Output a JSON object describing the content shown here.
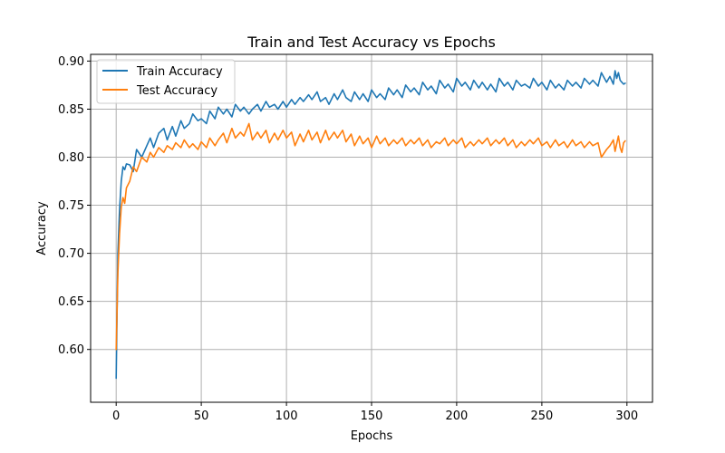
{
  "chart_data": {
    "type": "line",
    "title": "Train and Test Accuracy vs Epochs",
    "xlabel": "Epochs",
    "ylabel": "Accuracy",
    "xlim": [
      -15,
      315
    ],
    "ylim": [
      0.545,
      0.907
    ],
    "xticks": [
      0,
      50,
      100,
      150,
      200,
      250,
      300
    ],
    "yticks": [
      0.6,
      0.65,
      0.7,
      0.75,
      0.8,
      0.85,
      0.9
    ],
    "ytick_labels": [
      "0.60",
      "0.65",
      "0.70",
      "0.75",
      "0.80",
      "0.85",
      "0.90"
    ],
    "grid": true,
    "legend_position": "top-left",
    "series": [
      {
        "name": "Train Accuracy",
        "color": "#1f77b4",
        "x": [
          0,
          1,
          2,
          3,
          4,
          5,
          6,
          8,
          10,
          12,
          15,
          18,
          20,
          22,
          25,
          28,
          30,
          33,
          35,
          38,
          40,
          43,
          45,
          48,
          50,
          53,
          55,
          58,
          60,
          63,
          65,
          68,
          70,
          73,
          75,
          78,
          80,
          83,
          85,
          88,
          90,
          93,
          95,
          98,
          100,
          103,
          105,
          108,
          110,
          113,
          115,
          118,
          120,
          123,
          125,
          128,
          130,
          133,
          135,
          138,
          140,
          143,
          145,
          148,
          150,
          153,
          155,
          158,
          160,
          163,
          165,
          168,
          170,
          173,
          175,
          178,
          180,
          183,
          185,
          188,
          190,
          193,
          195,
          198,
          200,
          203,
          205,
          208,
          210,
          213,
          215,
          218,
          220,
          223,
          225,
          228,
          230,
          233,
          235,
          238,
          240,
          243,
          245,
          248,
          250,
          253,
          255,
          258,
          260,
          263,
          265,
          268,
          270,
          273,
          275,
          278,
          280,
          283,
          285,
          288,
          290,
          292,
          293,
          294,
          295,
          296,
          297,
          298,
          299
        ],
        "values": [
          0.57,
          0.7,
          0.745,
          0.775,
          0.79,
          0.787,
          0.793,
          0.792,
          0.785,
          0.808,
          0.8,
          0.812,
          0.82,
          0.81,
          0.825,
          0.83,
          0.818,
          0.832,
          0.822,
          0.838,
          0.83,
          0.835,
          0.845,
          0.838,
          0.84,
          0.835,
          0.848,
          0.84,
          0.852,
          0.845,
          0.85,
          0.842,
          0.855,
          0.848,
          0.852,
          0.845,
          0.85,
          0.855,
          0.848,
          0.858,
          0.852,
          0.855,
          0.85,
          0.858,
          0.852,
          0.86,
          0.855,
          0.862,
          0.858,
          0.865,
          0.86,
          0.868,
          0.858,
          0.862,
          0.855,
          0.866,
          0.86,
          0.87,
          0.862,
          0.858,
          0.868,
          0.86,
          0.866,
          0.858,
          0.87,
          0.862,
          0.866,
          0.86,
          0.872,
          0.865,
          0.87,
          0.862,
          0.875,
          0.868,
          0.872,
          0.865,
          0.878,
          0.87,
          0.874,
          0.866,
          0.88,
          0.872,
          0.876,
          0.868,
          0.882,
          0.874,
          0.878,
          0.87,
          0.88,
          0.872,
          0.878,
          0.87,
          0.876,
          0.868,
          0.882,
          0.874,
          0.878,
          0.87,
          0.88,
          0.874,
          0.876,
          0.872,
          0.882,
          0.874,
          0.878,
          0.87,
          0.88,
          0.872,
          0.876,
          0.87,
          0.88,
          0.874,
          0.878,
          0.872,
          0.882,
          0.876,
          0.88,
          0.874,
          0.888,
          0.878,
          0.884,
          0.876,
          0.89,
          0.882,
          0.888,
          0.88,
          0.878,
          0.876,
          0.877
        ]
      },
      {
        "name": "Test Accuracy",
        "color": "#ff7f0e",
        "x": [
          0,
          1,
          2,
          3,
          4,
          5,
          6,
          8,
          10,
          12,
          15,
          18,
          20,
          22,
          25,
          28,
          30,
          33,
          35,
          38,
          40,
          43,
          45,
          48,
          50,
          53,
          55,
          58,
          60,
          63,
          65,
          68,
          70,
          73,
          75,
          78,
          80,
          83,
          85,
          88,
          90,
          93,
          95,
          98,
          100,
          103,
          105,
          108,
          110,
          113,
          115,
          118,
          120,
          123,
          125,
          128,
          130,
          133,
          135,
          138,
          140,
          143,
          145,
          148,
          150,
          153,
          155,
          158,
          160,
          163,
          165,
          168,
          170,
          173,
          175,
          178,
          180,
          183,
          185,
          188,
          190,
          193,
          195,
          198,
          200,
          203,
          205,
          208,
          210,
          213,
          215,
          218,
          220,
          223,
          225,
          228,
          230,
          233,
          235,
          238,
          240,
          243,
          245,
          248,
          250,
          253,
          255,
          258,
          260,
          263,
          265,
          268,
          270,
          273,
          275,
          278,
          280,
          283,
          285,
          288,
          290,
          292,
          293,
          294,
          295,
          296,
          297,
          298,
          299
        ],
        "values": [
          0.6,
          0.68,
          0.72,
          0.748,
          0.758,
          0.752,
          0.768,
          0.775,
          0.79,
          0.785,
          0.8,
          0.795,
          0.805,
          0.8,
          0.81,
          0.805,
          0.812,
          0.808,
          0.815,
          0.81,
          0.818,
          0.81,
          0.814,
          0.808,
          0.816,
          0.81,
          0.82,
          0.812,
          0.818,
          0.825,
          0.815,
          0.83,
          0.82,
          0.826,
          0.822,
          0.835,
          0.818,
          0.826,
          0.82,
          0.828,
          0.815,
          0.825,
          0.818,
          0.828,
          0.82,
          0.826,
          0.812,
          0.824,
          0.816,
          0.828,
          0.818,
          0.826,
          0.815,
          0.828,
          0.818,
          0.826,
          0.82,
          0.828,
          0.816,
          0.824,
          0.812,
          0.822,
          0.814,
          0.82,
          0.81,
          0.822,
          0.814,
          0.82,
          0.812,
          0.818,
          0.814,
          0.82,
          0.812,
          0.818,
          0.814,
          0.82,
          0.812,
          0.818,
          0.81,
          0.816,
          0.814,
          0.82,
          0.812,
          0.818,
          0.814,
          0.82,
          0.81,
          0.816,
          0.812,
          0.818,
          0.814,
          0.82,
          0.812,
          0.818,
          0.814,
          0.82,
          0.812,
          0.818,
          0.81,
          0.816,
          0.812,
          0.818,
          0.814,
          0.82,
          0.812,
          0.816,
          0.81,
          0.818,
          0.812,
          0.816,
          0.81,
          0.818,
          0.812,
          0.816,
          0.81,
          0.816,
          0.812,
          0.815,
          0.8,
          0.808,
          0.812,
          0.818,
          0.806,
          0.814,
          0.822,
          0.81,
          0.805,
          0.815,
          0.817
        ]
      }
    ]
  }
}
